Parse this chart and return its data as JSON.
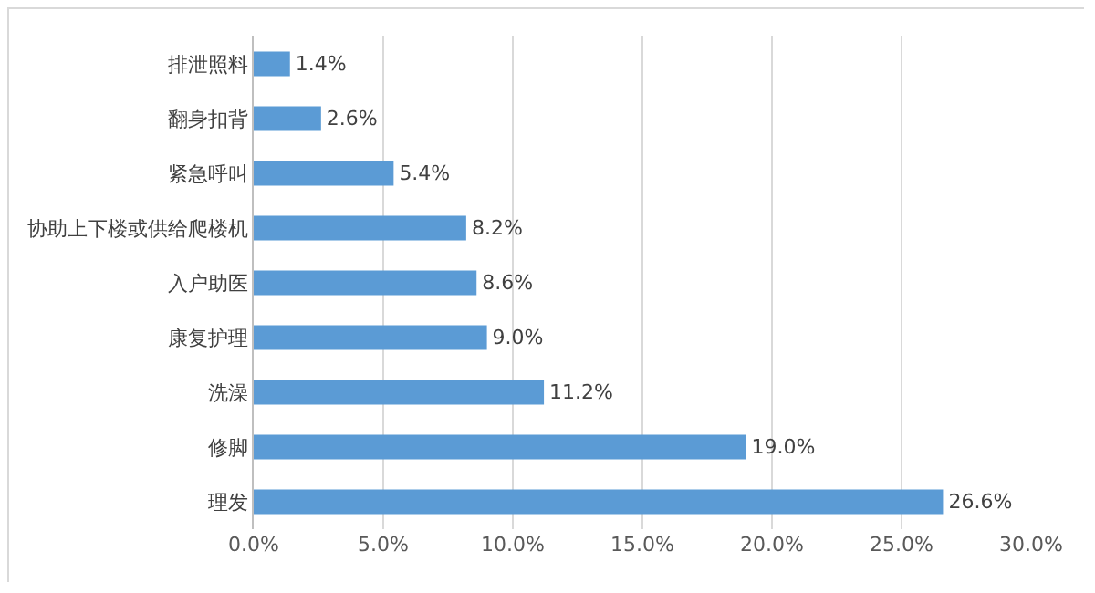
{
  "chart_data": {
    "type": "bar",
    "orientation": "horizontal",
    "categories": [
      "排泄照料",
      "翻身扣背",
      "紧急呼叫",
      "协助上下楼或供给爬楼机",
      "入户助医",
      "康复护理",
      "洗澡",
      "修脚",
      "理发"
    ],
    "values": [
      1.4,
      2.6,
      5.4,
      8.2,
      8.6,
      9.0,
      11.2,
      19.0,
      26.6
    ],
    "value_labels": [
      "1.4%",
      "2.6%",
      "5.4%",
      "8.2%",
      "8.6%",
      "9.0%",
      "11.2%",
      "19.0%",
      "26.6%"
    ],
    "color": "#5b9bd5",
    "xlim": [
      0,
      30
    ],
    "xticks": [
      {
        "value": 0,
        "label": "0.0%"
      },
      {
        "value": 5,
        "label": "5.0%"
      },
      {
        "value": 10,
        "label": "10.0%"
      },
      {
        "value": 15,
        "label": "15.0%"
      },
      {
        "value": 20,
        "label": "20.0%"
      },
      {
        "value": 25,
        "label": "25.0%"
      },
      {
        "value": 30,
        "label": "30.0%"
      }
    ],
    "grid": "x"
  }
}
